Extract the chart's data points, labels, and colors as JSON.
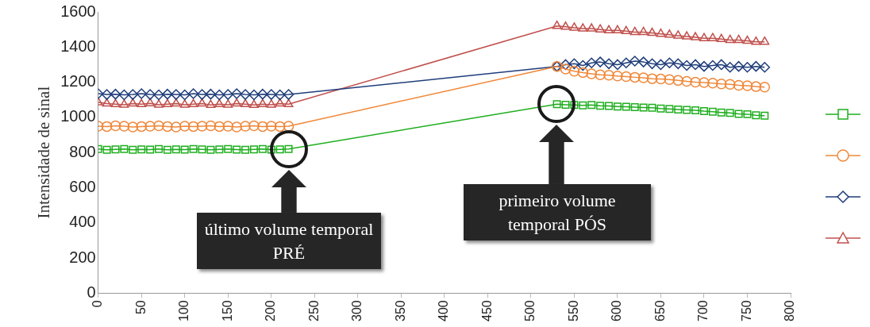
{
  "chart_data": {
    "type": "line",
    "ylabel": "Intensidade de sinal",
    "x": [
      0,
      10,
      20,
      30,
      40,
      50,
      60,
      70,
      80,
      90,
      100,
      110,
      120,
      130,
      140,
      150,
      160,
      170,
      180,
      190,
      200,
      210,
      220,
      530,
      540,
      550,
      560,
      570,
      580,
      590,
      600,
      610,
      620,
      630,
      640,
      650,
      660,
      670,
      680,
      690,
      700,
      710,
      720,
      730,
      740,
      750,
      760,
      770
    ],
    "series": [
      {
        "color": "#1fae1f",
        "marker": "square",
        "values": [
          820,
          815,
          818,
          820,
          815,
          818,
          817,
          820,
          815,
          818,
          816,
          820,
          818,
          815,
          818,
          820,
          817,
          815,
          818,
          820,
          816,
          818,
          820,
          1075,
          1072,
          1070,
          1068,
          1070,
          1066,
          1065,
          1062,
          1060,
          1058,
          1056,
          1055,
          1050,
          1048,
          1045,
          1042,
          1040,
          1035,
          1032,
          1028,
          1025,
          1020,
          1018,
          1012,
          1010
        ]
      },
      {
        "color": "#f0883a",
        "marker": "circle",
        "values": [
          950,
          948,
          952,
          950,
          945,
          948,
          950,
          952,
          948,
          945,
          950,
          948,
          950,
          952,
          948,
          950,
          945,
          950,
          952,
          948,
          950,
          948,
          950,
          1290,
          1275,
          1262,
          1255,
          1248,
          1242,
          1240,
          1235,
          1232,
          1228,
          1225,
          1220,
          1218,
          1215,
          1210,
          1205,
          1200,
          1198,
          1195,
          1190,
          1188,
          1182,
          1180,
          1175,
          1172
        ]
      },
      {
        "color": "#1f3d7a",
        "marker": "diamond",
        "values": [
          1135,
          1130,
          1132,
          1128,
          1130,
          1135,
          1130,
          1128,
          1132,
          1130,
          1128,
          1135,
          1130,
          1132,
          1128,
          1130,
          1135,
          1130,
          1128,
          1132,
          1130,
          1128,
          1130,
          1290,
          1300,
          1305,
          1295,
          1310,
          1315,
          1305,
          1300,
          1310,
          1320,
          1315,
          1305,
          1300,
          1310,
          1305,
          1295,
          1300,
          1290,
          1295,
          1300,
          1285,
          1290,
          1285,
          1290,
          1285
        ]
      },
      {
        "color": "#c0504d",
        "marker": "triangle",
        "values": [
          1085,
          1078,
          1075,
          1072,
          1078,
          1075,
          1080,
          1072,
          1075,
          1078,
          1072,
          1075,
          1078,
          1070,
          1075,
          1072,
          1078,
          1075,
          1070,
          1075,
          1072,
          1078,
          1075,
          1520,
          1515,
          1510,
          1505,
          1505,
          1500,
          1495,
          1495,
          1490,
          1485,
          1485,
          1480,
          1475,
          1470,
          1465,
          1460,
          1455,
          1450,
          1450,
          1445,
          1440,
          1440,
          1435,
          1430,
          1430
        ]
      }
    ],
    "xlim": [
      0,
      800
    ],
    "xticks": [
      0,
      50,
      100,
      150,
      200,
      250,
      300,
      350,
      400,
      450,
      500,
      550,
      600,
      650,
      700,
      750,
      800
    ],
    "ylim": [
      0,
      1600
    ],
    "yticks": [
      0,
      200,
      400,
      600,
      800,
      1000,
      1200,
      1400,
      1600
    ],
    "grid": false,
    "annotations": [
      "último volume temporal PRÉ",
      "primeiro volume temporal PÓS"
    ]
  }
}
